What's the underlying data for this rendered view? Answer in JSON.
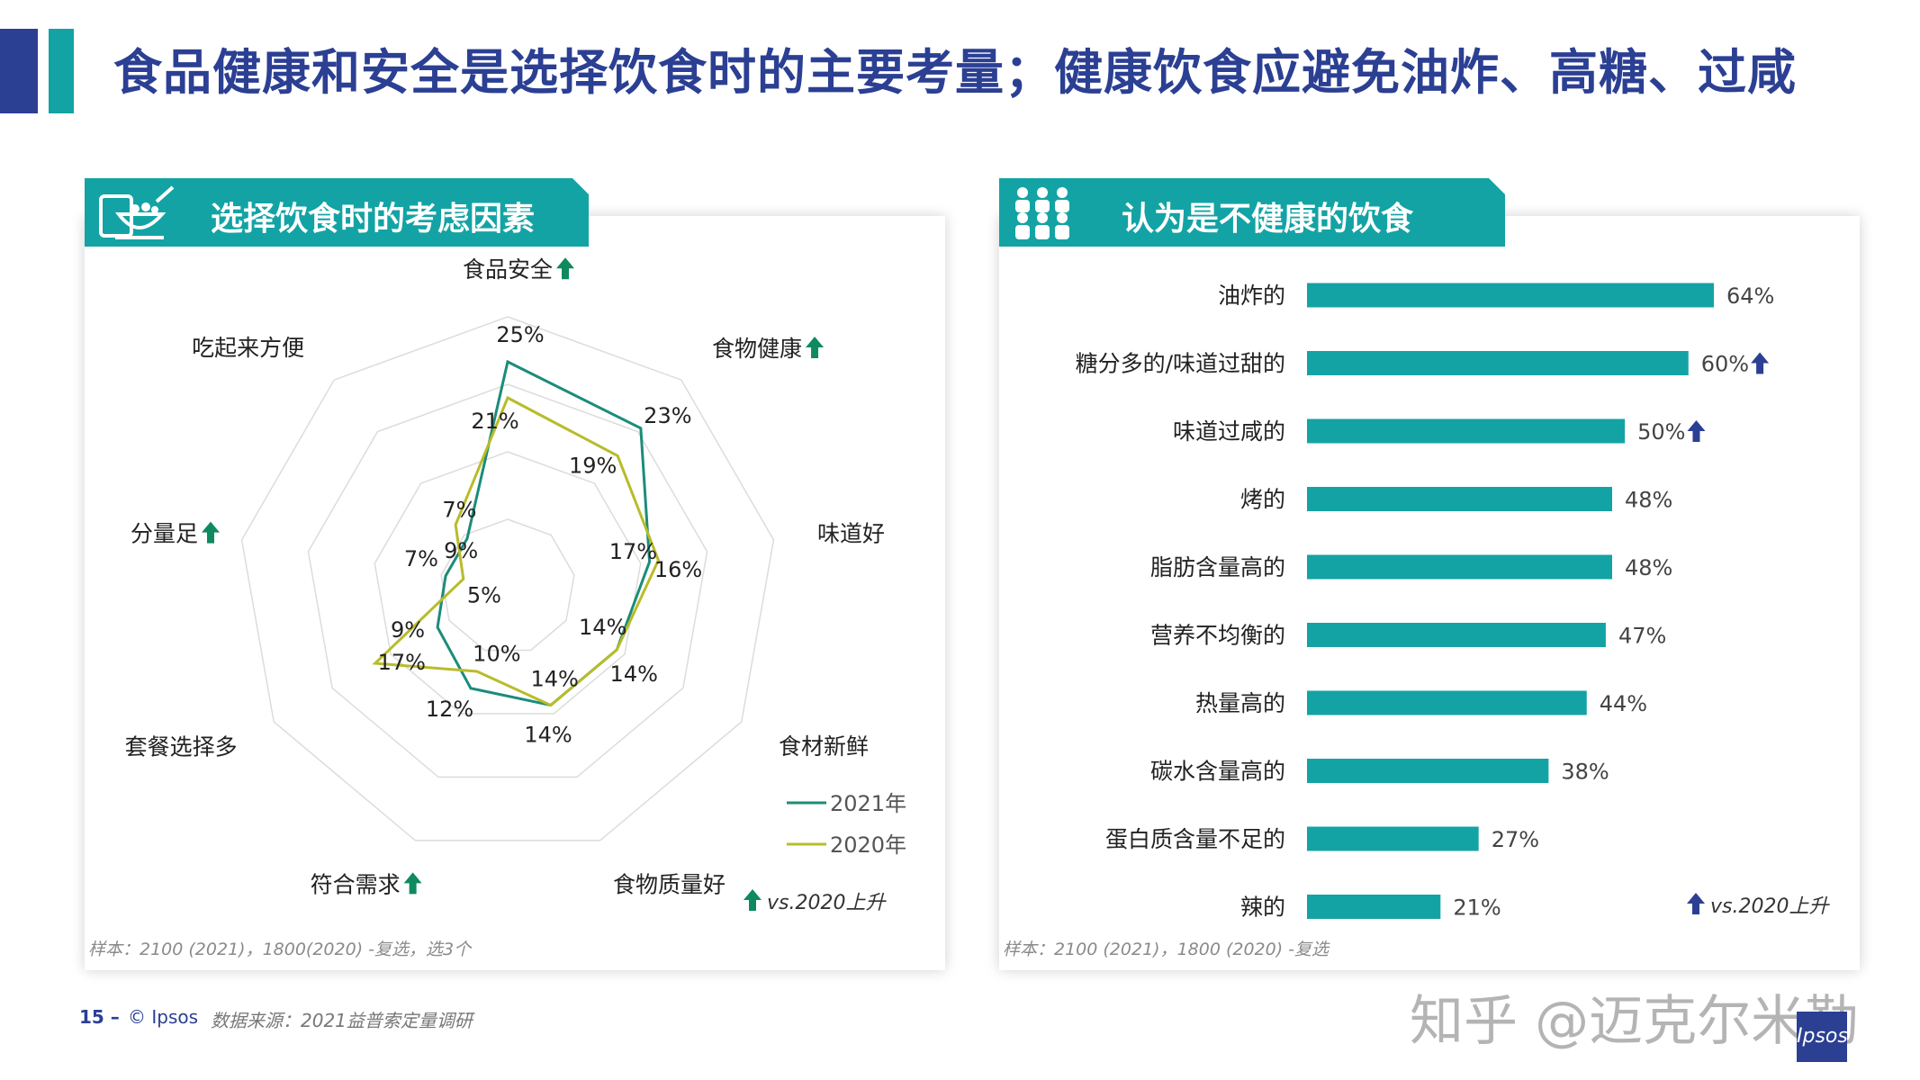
{
  "title": "食品健康和安全是选择饮食时的主要考量；健康饮食应避免油炸、高糖、过咸",
  "colors": {
    "navy": "#2b3f93",
    "teal": "#14a3a5",
    "arrow": "#0f8a5f",
    "s2021": "#1b8c7a",
    "s2020": "#b8bc2a"
  },
  "left_panel": {
    "heading": "选择饮食时的考虑因素",
    "icon": "food-bowl-icon",
    "legend_up_text": "vs.2020上升",
    "sample_note": "样本：2100 (2021)，1800(2020) -复选，选3个"
  },
  "right_panel": {
    "heading": "认为是不健康的饮食",
    "icon": "people-group-icon",
    "legend_up_text": "vs.2020上升",
    "sample_note": "样本：2100 (2021)，1800 (2020) -复选"
  },
  "footer": {
    "page_number": "15 –",
    "brand": "© Ipsos",
    "source": "数据来源：2021益普索定量调研",
    "watermark": "知乎 @迈克尔米勒",
    "logo": "Ipsos"
  },
  "chart_data": [
    {
      "type": "radar",
      "categories": [
        "食品安全",
        "食物健康",
        "味道好",
        "食材新鲜",
        "食物质量好",
        "符合需求",
        "套餐选择多",
        "分量足",
        "吃起来方便"
      ],
      "up_vs_2020": [
        true,
        true,
        false,
        false,
        false,
        true,
        false,
        true,
        false
      ],
      "series": [
        {
          "name": "2021年",
          "values": [
            25,
            23,
            16,
            14,
            14,
            12,
            9,
            7,
            7
          ],
          "labels": [
            "25%",
            "23%",
            "16%",
            "14%",
            "14%",
            "12%",
            "9%",
            "7%",
            "7%"
          ]
        },
        {
          "name": "2020年",
          "values": [
            21,
            19,
            17,
            14,
            14,
            10,
            17,
            5,
            9
          ],
          "labels": [
            "21%",
            "19%",
            "17%",
            "14%",
            "14%",
            "10%",
            "17%",
            "5%",
            "9%"
          ]
        }
      ],
      "rmax": 30,
      "grid_rings": 4,
      "legend_position": "bottom-right"
    },
    {
      "type": "bar",
      "orientation": "horizontal",
      "categories": [
        "油炸的",
        "糖分多的/味道过甜的",
        "味道过咸的",
        "烤的",
        "脂肪含量高的",
        "营养不均衡的",
        "热量高的",
        "碳水含量高的",
        "蛋白质含量不足的",
        "辣的"
      ],
      "values": [
        64,
        60,
        50,
        48,
        48,
        47,
        44,
        38,
        27,
        21
      ],
      "labels": [
        "64%",
        "60%",
        "50%",
        "48%",
        "48%",
        "47%",
        "44%",
        "38%",
        "27%",
        "21%"
      ],
      "up_vs_2020": [
        false,
        true,
        true,
        false,
        false,
        false,
        false,
        false,
        false,
        false
      ],
      "xlim": [
        0,
        64
      ],
      "bar_color": "#14a3a5"
    }
  ]
}
